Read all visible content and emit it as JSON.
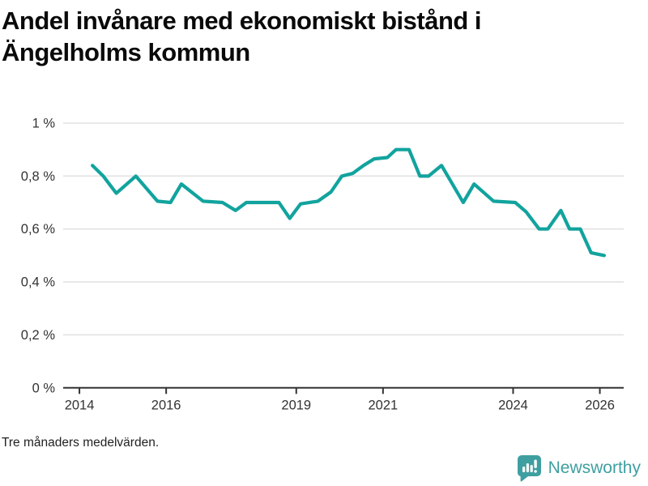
{
  "page": {
    "title_line1": "Andel invånare med ekonomiskt bistånd i",
    "title_line2": "Ängelholms kommun",
    "footnote": "Tre månaders medelvärden.",
    "brand": {
      "name": "Newsworthy",
      "icon": "newsworthy-bar-chart-bubble-icon",
      "color": "#3f9fa0"
    }
  },
  "chart_data": {
    "type": "line",
    "title": "Andel invånare med ekonomiskt bistånd i Ängelholms kommun",
    "subtitle": "Tre månaders medelvärden.",
    "unit": "%",
    "grid": true,
    "legend_position": "none",
    "line_color": "#12a39e",
    "grid_color": "#e2e2e2",
    "axis_color": "#333333",
    "label_color": "#333333",
    "x_domain": [
      2013.7,
      2026.55
    ],
    "y_domain": [
      0,
      1
    ],
    "x_ticks": [
      {
        "value": 2014,
        "label": "2014"
      },
      {
        "value": 2016,
        "label": "2016"
      },
      {
        "value": 2019,
        "label": "2019"
      },
      {
        "value": 2021,
        "label": "2021"
      },
      {
        "value": 2024,
        "label": "2024"
      },
      {
        "value": 2026,
        "label": "2026"
      }
    ],
    "y_ticks": [
      {
        "value": 0,
        "label": "0 %"
      },
      {
        "value": 0.2,
        "label": "0,2 %"
      },
      {
        "value": 0.4,
        "label": "0,4 %"
      },
      {
        "value": 0.6,
        "label": "0,6 %"
      },
      {
        "value": 0.8,
        "label": "0,8 %"
      },
      {
        "value": 1,
        "label": "1 %"
      }
    ],
    "series": [
      {
        "name": "Andel invånare med ekonomiskt bistånd",
        "points": [
          [
            2014.3,
            0.84
          ],
          [
            2014.55,
            0.8
          ],
          [
            2014.85,
            0.735
          ],
          [
            2015.3,
            0.8
          ],
          [
            2015.8,
            0.705
          ],
          [
            2016.1,
            0.7
          ],
          [
            2016.35,
            0.77
          ],
          [
            2016.85,
            0.705
          ],
          [
            2017.3,
            0.7
          ],
          [
            2017.6,
            0.67
          ],
          [
            2017.85,
            0.7
          ],
          [
            2018.6,
            0.7
          ],
          [
            2018.85,
            0.64
          ],
          [
            2019.1,
            0.695
          ],
          [
            2019.5,
            0.705
          ],
          [
            2019.8,
            0.74
          ],
          [
            2020.05,
            0.8
          ],
          [
            2020.3,
            0.81
          ],
          [
            2020.55,
            0.84
          ],
          [
            2020.8,
            0.865
          ],
          [
            2021.1,
            0.87
          ],
          [
            2021.3,
            0.9
          ],
          [
            2021.6,
            0.9
          ],
          [
            2021.85,
            0.8
          ],
          [
            2022.05,
            0.8
          ],
          [
            2022.35,
            0.84
          ],
          [
            2022.85,
            0.7
          ],
          [
            2023.1,
            0.77
          ],
          [
            2023.55,
            0.705
          ],
          [
            2024.05,
            0.7
          ],
          [
            2024.3,
            0.665
          ],
          [
            2024.6,
            0.6
          ],
          [
            2024.8,
            0.6
          ],
          [
            2025.1,
            0.67
          ],
          [
            2025.3,
            0.6
          ],
          [
            2025.55,
            0.6
          ],
          [
            2025.8,
            0.51
          ],
          [
            2026.1,
            0.5
          ]
        ]
      }
    ]
  }
}
